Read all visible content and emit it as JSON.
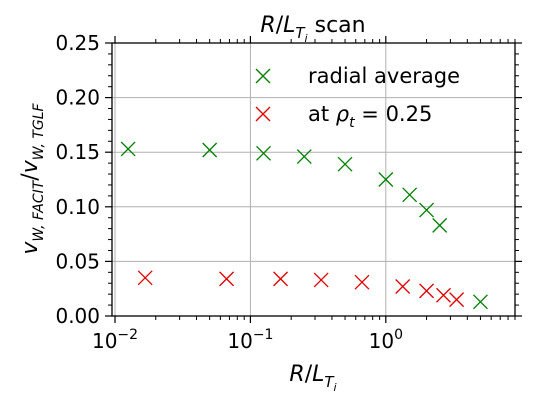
{
  "chart_data": {
    "type": "scatter",
    "title": "R/L_Ti scan",
    "xlabel": "R/L_Ti",
    "ylabel": "v_W,FACIT / v_W,TGLF",
    "xscale": "log",
    "xlim": [
      0.0095,
      9.0
    ],
    "ylim": [
      0.0,
      0.25
    ],
    "grid": true,
    "legend_position": "top-right",
    "x_tick_labels": [
      "10^-2",
      "10^-1",
      "10^0"
    ],
    "y_tick_labels": [
      "0.00",
      "0.05",
      "0.10",
      "0.15",
      "0.20",
      "0.25"
    ],
    "series": [
      {
        "name": "radial average",
        "color": "#008000",
        "marker": "x",
        "x": [
          0.0125,
          0.05,
          0.125,
          0.25,
          0.5,
          1.0,
          1.5,
          2.0,
          2.5,
          5.0
        ],
        "y": [
          0.153,
          0.152,
          0.149,
          0.146,
          0.139,
          0.125,
          0.111,
          0.097,
          0.083,
          0.013
        ]
      },
      {
        "name": "at ρ_t = 0.25",
        "color": "#e00000",
        "marker": "x",
        "x": [
          0.0167,
          0.0667,
          0.167,
          0.333,
          0.667,
          1.333,
          2.0,
          2.667,
          3.333
        ],
        "y": [
          0.035,
          0.034,
          0.034,
          0.033,
          0.031,
          0.027,
          0.023,
          0.019,
          0.015
        ]
      }
    ]
  }
}
